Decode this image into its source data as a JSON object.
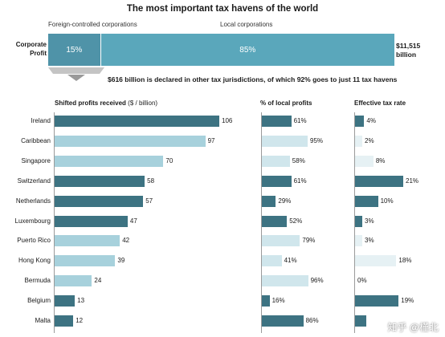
{
  "title": "The most important tax havens of the world",
  "corporate_profit": {
    "label_line1": "Corporate",
    "label_line2": "Profit",
    "foreign_label": "Foreign-controlled corporations",
    "local_label": "Local corporations",
    "foreign_pct_label": "15%",
    "local_pct_label": "85%",
    "foreign_share": 15,
    "local_share": 85,
    "total_line1": "$11,515",
    "total_line2": "billion"
  },
  "note": "$616 billion is declared in other tax jurisdictions, of which 92% goes to just 11 tax havens",
  "watermark": "知乎 @槿北",
  "chart_data": {
    "type": "bar",
    "orientation": "horizontal",
    "categories": [
      "Ireland",
      "Caribbean",
      "Singapore",
      "Switzerland",
      "Netherlands",
      "Luxembourg",
      "Puerto Rico",
      "Hong Kong",
      "Bermuda",
      "Belgium",
      "Malta"
    ],
    "panels": [
      {
        "header": "Shifted profits received",
        "header_unit": "($ / billion)",
        "values": [
          106,
          97,
          70,
          58,
          57,
          47,
          42,
          39,
          24,
          13,
          12
        ],
        "labels": [
          "106",
          "97",
          "70",
          "58",
          "57",
          "47",
          "42",
          "39",
          "24",
          "13",
          "12"
        ],
        "max": 106
      },
      {
        "header": "% of local profits",
        "values": [
          61,
          95,
          58,
          61,
          29,
          52,
          79,
          41,
          96,
          16,
          86
        ],
        "labels": [
          "61%",
          "95%",
          "58%",
          "61%",
          "29%",
          "52%",
          "79%",
          "41%",
          "96%",
          "16%",
          "86%"
        ],
        "max": 100
      },
      {
        "header": "Effective tax rate",
        "values": [
          4,
          2,
          8,
          21,
          10,
          3,
          3,
          18,
          0,
          19,
          5
        ],
        "labels": [
          "4%",
          "2%",
          "8%",
          "21%",
          "10%",
          "3%",
          "3%",
          "18%",
          "0%",
          "19%",
          ""
        ],
        "max": 21
      }
    ],
    "colors": {
      "dark": "#3d7382",
      "light": "#a7d1dc",
      "very_light": "#d0e6ec",
      "pale": "#e6f1f4",
      "top_foreign": "#4f93a8",
      "top_local": "#5aa7bb"
    },
    "bar_shades": [
      [
        "dark",
        "light",
        "light",
        "dark",
        "dark",
        "dark",
        "light",
        "light",
        "light",
        "dark",
        "dark"
      ],
      [
        "dark",
        "very_light",
        "very_light",
        "dark",
        "dark",
        "dark",
        "very_light",
        "very_light",
        "very_light",
        "dark",
        "dark"
      ],
      [
        "dark",
        "pale",
        "pale",
        "dark",
        "dark",
        "dark",
        "pale",
        "pale",
        "pale",
        "dark",
        "dark"
      ]
    ]
  }
}
